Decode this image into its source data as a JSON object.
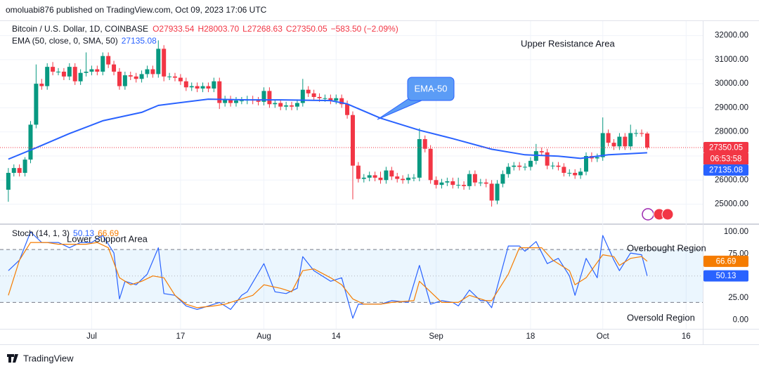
{
  "header": {
    "publisher": "omoluabi876 published on TradingView.com, Oct 09, 2023 17:06 UTC"
  },
  "footer": {
    "brand": "TradingView"
  },
  "chart_data": [
    {
      "type": "candlestick",
      "title": "Bitcoin / U.S. Dollar, 1D, COINBASE",
      "legend_labels": [
        "O27933.54",
        "H28003.70",
        "L27268.63",
        "C27350.05",
        "−583.50 (−2.09%)"
      ],
      "x": [
        "2023-06-16",
        "2023-06-17",
        "2023-06-18",
        "2023-06-19",
        "2023-06-20",
        "2023-06-21",
        "2023-06-22",
        "2023-06-23",
        "2023-06-24",
        "2023-06-25",
        "2023-06-26",
        "2023-06-27",
        "2023-06-28",
        "2023-06-29",
        "2023-06-30",
        "2023-07-01",
        "2023-07-02",
        "2023-07-03",
        "2023-07-04",
        "2023-07-05",
        "2023-07-06",
        "2023-07-07",
        "2023-07-08",
        "2023-07-09",
        "2023-07-10",
        "2023-07-11",
        "2023-07-12",
        "2023-07-13",
        "2023-07-14",
        "2023-07-15",
        "2023-07-16",
        "2023-07-17",
        "2023-07-18",
        "2023-07-19",
        "2023-07-20",
        "2023-07-21",
        "2023-07-22",
        "2023-07-23",
        "2023-07-24",
        "2023-07-25",
        "2023-07-26",
        "2023-07-27",
        "2023-07-28",
        "2023-07-29",
        "2023-07-30",
        "2023-07-31",
        "2023-08-01",
        "2023-08-02",
        "2023-08-03",
        "2023-08-04",
        "2023-08-05",
        "2023-08-06",
        "2023-08-07",
        "2023-08-08",
        "2023-08-09",
        "2023-08-10",
        "2023-08-11",
        "2023-08-12",
        "2023-08-13",
        "2023-08-14",
        "2023-08-15",
        "2023-08-16",
        "2023-08-17",
        "2023-08-18",
        "2023-08-19",
        "2023-08-20",
        "2023-08-21",
        "2023-08-22",
        "2023-08-23",
        "2023-08-24",
        "2023-08-25",
        "2023-08-26",
        "2023-08-27",
        "2023-08-28",
        "2023-08-29",
        "2023-08-30",
        "2023-08-31",
        "2023-09-01",
        "2023-09-02",
        "2023-09-03",
        "2023-09-04",
        "2023-09-05",
        "2023-09-06",
        "2023-09-07",
        "2023-09-08",
        "2023-09-09",
        "2023-09-10",
        "2023-09-11",
        "2023-09-12",
        "2023-09-13",
        "2023-09-14",
        "2023-09-15",
        "2023-09-16",
        "2023-09-17",
        "2023-09-18",
        "2023-09-19",
        "2023-09-20",
        "2023-09-21",
        "2023-09-22",
        "2023-09-23",
        "2023-09-24",
        "2023-09-25",
        "2023-09-26",
        "2023-09-27",
        "2023-09-28",
        "2023-09-29",
        "2023-09-30",
        "2023-10-01",
        "2023-10-02",
        "2023-10-03",
        "2023-10-04",
        "2023-10-05",
        "2023-10-06",
        "2023-10-07",
        "2023-10-08",
        "2023-10-09"
      ],
      "open": [
        25600,
        26300,
        26500,
        26300,
        26850,
        28300,
        30000,
        29900,
        30700,
        30500,
        30500,
        30300,
        30700,
        30100,
        30450,
        30500,
        30600,
        30500,
        31150,
        30800,
        30500,
        29900,
        30350,
        30300,
        30200,
        30400,
        30600,
        30400,
        31450,
        30300,
        30300,
        30250,
        30100,
        29850,
        29900,
        29800,
        29900,
        29800,
        30100,
        29200,
        29350,
        29200,
        29300,
        29300,
        29350,
        29300,
        29250,
        29700,
        29150,
        29200,
        29050,
        29100,
        29050,
        29200,
        29750,
        29600,
        29450,
        29400,
        29400,
        29300,
        29400,
        29150,
        28700,
        26600,
        26050,
        26100,
        26200,
        26100,
        26000,
        26400,
        26150,
        26050,
        26000,
        26100,
        26100,
        27700,
        27300,
        26000,
        25800,
        25900,
        25950,
        25800,
        25800,
        25750,
        26250,
        25900,
        25900,
        25850,
        25150,
        25850,
        26250,
        26550,
        26600,
        26550,
        26550,
        26800,
        27200,
        27150,
        26600,
        26600,
        26550,
        26300,
        26300,
        26200,
        26350,
        27000,
        26900,
        26950,
        27950,
        27550,
        27400,
        27800,
        27400,
        27950,
        27950,
        27933.54
      ],
      "high": [
        26500,
        26650,
        26650,
        26950,
        28450,
        30800,
        30200,
        30850,
        30900,
        30650,
        30650,
        30850,
        30850,
        30600,
        31300,
        30750,
        30750,
        31300,
        31300,
        30950,
        30650,
        30500,
        30500,
        30450,
        30550,
        30750,
        30750,
        31800,
        31600,
        30450,
        30450,
        30400,
        30250,
        30050,
        30050,
        30050,
        30050,
        30250,
        30250,
        29500,
        29500,
        29450,
        29450,
        29500,
        29500,
        29450,
        29850,
        29850,
        29350,
        29350,
        29250,
        29250,
        29350,
        30200,
        29900,
        29750,
        29600,
        29550,
        29550,
        29550,
        29550,
        29300,
        28850,
        26750,
        26250,
        26350,
        26350,
        26350,
        26550,
        26550,
        26300,
        26200,
        26250,
        26250,
        28150,
        27850,
        27450,
        26150,
        26050,
        26100,
        26100,
        26100,
        25950,
        26400,
        26400,
        26050,
        26050,
        26000,
        26000,
        26400,
        26700,
        26750,
        26750,
        26700,
        26950,
        27500,
        27350,
        27300,
        26750,
        26750,
        26700,
        26450,
        26450,
        26500,
        27150,
        27150,
        27100,
        28600,
        28100,
        27700,
        27950,
        27950,
        28300,
        28100,
        28100,
        28003.7
      ],
      "low": [
        25100,
        26150,
        26150,
        26150,
        26700,
        28150,
        29750,
        29750,
        30350,
        30350,
        30150,
        30150,
        29950,
        29950,
        30300,
        30350,
        30350,
        30350,
        30650,
        30350,
        29750,
        29750,
        30150,
        30050,
        30050,
        30250,
        30250,
        30250,
        30100,
        30150,
        30100,
        29950,
        29700,
        29700,
        29650,
        29650,
        29650,
        29650,
        28950,
        29050,
        29050,
        29050,
        29150,
        29150,
        29150,
        29100,
        29100,
        29000,
        29000,
        28900,
        28900,
        28900,
        28900,
        29050,
        29450,
        29300,
        29250,
        29250,
        29150,
        29150,
        29000,
        28550,
        25200,
        25900,
        25900,
        25950,
        25950,
        25850,
        25850,
        26000,
        25900,
        25850,
        25850,
        25950,
        25950,
        27150,
        25850,
        25650,
        25650,
        25750,
        25650,
        25650,
        25600,
        25600,
        25750,
        25750,
        25700,
        24900,
        25000,
        25700,
        26100,
        26400,
        26400,
        26400,
        26400,
        26650,
        27000,
        26450,
        26450,
        26400,
        26150,
        26150,
        26050,
        26050,
        26200,
        26750,
        26750,
        26800,
        27400,
        27250,
        27250,
        27250,
        27250,
        27800,
        27800,
        27268.63
      ],
      "close": [
        26300,
        26500,
        26300,
        26850,
        28300,
        30000,
        29900,
        30700,
        30500,
        30500,
        30300,
        30700,
        30100,
        30450,
        30500,
        30600,
        30500,
        31150,
        30800,
        30500,
        29900,
        30350,
        30300,
        30200,
        30400,
        30600,
        30400,
        31450,
        30300,
        30300,
        30250,
        30100,
        29850,
        29900,
        29800,
        29900,
        29800,
        30100,
        29200,
        29350,
        29200,
        29300,
        29300,
        29350,
        29300,
        29250,
        29700,
        29150,
        29200,
        29050,
        29100,
        29050,
        29200,
        29750,
        29600,
        29450,
        29400,
        29400,
        29300,
        29400,
        29150,
        28700,
        26600,
        26050,
        26100,
        26200,
        26100,
        26000,
        26400,
        26150,
        26050,
        26000,
        26100,
        26100,
        27700,
        27300,
        26000,
        25800,
        25900,
        25950,
        25800,
        25800,
        25750,
        26250,
        25900,
        25900,
        25850,
        25150,
        25850,
        26250,
        26550,
        26600,
        26550,
        26550,
        26800,
        27200,
        27150,
        26600,
        26600,
        26550,
        26300,
        26300,
        26200,
        26350,
        27000,
        26900,
        26950,
        27950,
        27550,
        27400,
        27800,
        27400,
        27950,
        27950,
        27933.54,
        27350.05
      ],
      "up_color": "#089981",
      "down_color": "#f23645",
      "last_price_label": "27350.05",
      "countdown": "06:53:58",
      "series": [
        {
          "name": "EMA (50, close, 0, SMA, 50)",
          "last_label": "27135.08",
          "color": "#2962ff",
          "x": [
            "2023-06-16",
            "2023-06-21",
            "2023-06-27",
            "2023-07-03",
            "2023-07-10",
            "2023-07-13",
            "2023-07-22",
            "2023-07-29",
            "2023-08-04",
            "2023-08-13",
            "2023-08-16",
            "2023-08-22",
            "2023-08-29",
            "2023-09-04",
            "2023-09-11",
            "2023-09-17",
            "2023-09-23",
            "2023-09-27",
            "2023-10-02",
            "2023-10-09"
          ],
          "values": [
            26870,
            27340,
            27930,
            28460,
            28810,
            29100,
            29360,
            29330,
            29330,
            29300,
            29160,
            28570,
            28070,
            27720,
            27280,
            27050,
            26990,
            26900,
            27050,
            27135.08
          ]
        }
      ],
      "xlim": [
        "2023-06-14T12:00Z",
        "2023-10-19"
      ],
      "ylim": [
        24200,
        32600
      ],
      "yticks": [
        {
          "value": 25000,
          "label": "25000.00"
        },
        {
          "value": 26000,
          "label": "26000.00"
        },
        {
          "value": 27000,
          "label": "27000.00"
        },
        {
          "value": 28000,
          "label": "28000.00"
        },
        {
          "value": 29000,
          "label": "29000.00"
        },
        {
          "value": 30000,
          "label": "30000.00"
        },
        {
          "value": 31000,
          "label": "31000.00"
        },
        {
          "value": 32000,
          "label": "32000.00"
        }
      ],
      "grid": true,
      "annotations": {
        "resistance": "Upper Resistance Area",
        "ema_callout": "EMA-50"
      }
    },
    {
      "type": "line",
      "title": "Stoch (14, 1, 3)",
      "series": [
        {
          "color": "#2962ff",
          "last_label": "50.13",
          "x": [
            "2023-06-16",
            "2023-06-18",
            "2023-06-20",
            "2023-06-22",
            "2023-06-23",
            "2023-06-25",
            "2023-06-27",
            "2023-06-29",
            "2023-07-01",
            "2023-07-03",
            "2023-07-05",
            "2023-07-06",
            "2023-07-07",
            "2023-07-09",
            "2023-07-11",
            "2023-07-13",
            "2023-07-14",
            "2023-07-16",
            "2023-07-18",
            "2023-07-20",
            "2023-07-22",
            "2023-07-24",
            "2023-07-26",
            "2023-07-28",
            "2023-07-29",
            "2023-08-01",
            "2023-08-03",
            "2023-08-05",
            "2023-08-07",
            "2023-08-08",
            "2023-08-10",
            "2023-08-12",
            "2023-08-13",
            "2023-08-15",
            "2023-08-17",
            "2023-08-18",
            "2023-08-20",
            "2023-08-22",
            "2023-08-24",
            "2023-08-27",
            "2023-08-29",
            "2023-08-31",
            "2023-09-02",
            "2023-09-04",
            "2023-09-05",
            "2023-09-07",
            "2023-09-09",
            "2023-09-10",
            "2023-09-11",
            "2023-09-14",
            "2023-09-16",
            "2023-09-17",
            "2023-09-19",
            "2023-09-21",
            "2023-09-23",
            "2023-09-25",
            "2023-09-26",
            "2023-09-28",
            "2023-09-30",
            "2023-10-01",
            "2023-10-03",
            "2023-10-04",
            "2023-10-06",
            "2023-10-08",
            "2023-10-09"
          ],
          "values": [
            56,
            68,
            100,
            88,
            88,
            88,
            82,
            88,
            88,
            96,
            76,
            24,
            44,
            40,
            52,
            82,
            30,
            28,
            16,
            12,
            16,
            20,
            12,
            28,
            32,
            64,
            32,
            30,
            36,
            72,
            56,
            48,
            44,
            48,
            2,
            18,
            18,
            18,
            22,
            20,
            62,
            18,
            22,
            20,
            16,
            34,
            22,
            22,
            14,
            84,
            84,
            78,
            89,
            64,
            70,
            50,
            28,
            70,
            48,
            96,
            68,
            56,
            76,
            74,
            50.13
          ]
        },
        {
          "color": "#f57c00",
          "last_label": "66.69",
          "x": [
            "2023-06-16",
            "2023-06-18",
            "2023-06-20",
            "2023-06-23",
            "2023-06-25",
            "2023-06-27",
            "2023-06-30",
            "2023-07-02",
            "2023-07-04",
            "2023-07-06",
            "2023-07-08",
            "2023-07-10",
            "2023-07-12",
            "2023-07-14",
            "2023-07-16",
            "2023-07-18",
            "2023-07-20",
            "2023-07-23",
            "2023-07-25",
            "2023-07-28",
            "2023-07-30",
            "2023-08-01",
            "2023-08-04",
            "2023-08-06",
            "2023-08-08",
            "2023-08-10",
            "2023-08-13",
            "2023-08-15",
            "2023-08-17",
            "2023-08-19",
            "2023-08-22",
            "2023-08-24",
            "2023-08-28",
            "2023-08-29",
            "2023-08-31",
            "2023-09-02",
            "2023-09-05",
            "2023-09-07",
            "2023-09-10",
            "2023-09-11",
            "2023-09-14",
            "2023-09-16",
            "2023-09-17",
            "2023-09-20",
            "2023-09-22",
            "2023-09-25",
            "2023-09-26",
            "2023-09-28",
            "2023-10-01",
            "2023-10-03",
            "2023-10-04",
            "2023-10-06",
            "2023-10-08",
            "2023-10-09"
          ],
          "values": [
            28,
            68,
            88,
            88,
            86,
            86,
            86,
            88,
            82,
            48,
            40,
            44,
            50,
            48,
            28,
            18,
            14,
            16,
            18,
            24,
            28,
            40,
            36,
            32,
            56,
            58,
            48,
            40,
            24,
            18,
            18,
            20,
            22,
            44,
            32,
            20,
            20,
            28,
            22,
            22,
            52,
            82,
            82,
            82,
            68,
            56,
            40,
            48,
            74,
            72,
            62,
            70,
            72,
            66.69
          ]
        }
      ],
      "xlim": [
        "2023-06-14T12:00Z",
        "2023-10-19"
      ],
      "xticks": [
        {
          "value": "2023-07-01",
          "label": "Jul"
        },
        {
          "value": "2023-07-17",
          "label": "17"
        },
        {
          "value": "2023-08-01",
          "label": "Aug"
        },
        {
          "value": "2023-08-14",
          "label": "14"
        },
        {
          "value": "2023-09-01",
          "label": "Sep"
        },
        {
          "value": "2023-09-18",
          "label": "18"
        },
        {
          "value": "2023-10-01",
          "label": "Oct"
        },
        {
          "value": "2023-10-16",
          "label": "16"
        }
      ],
      "ylim": [
        -10,
        108
      ],
      "yticks": [
        {
          "value": 0,
          "label": "0.00"
        },
        {
          "value": 25,
          "label": "25.00"
        },
        {
          "value": 75,
          "label": "75.00"
        },
        {
          "value": 100,
          "label": "100.00"
        }
      ],
      "grid": false,
      "band": [
        20,
        80
      ],
      "band_color": "#2196f3",
      "midline": 50,
      "annotations": {
        "support": "Lower Support Area",
        "overbought": "Overbought Region",
        "oversold": "Oversold Region"
      }
    }
  ]
}
